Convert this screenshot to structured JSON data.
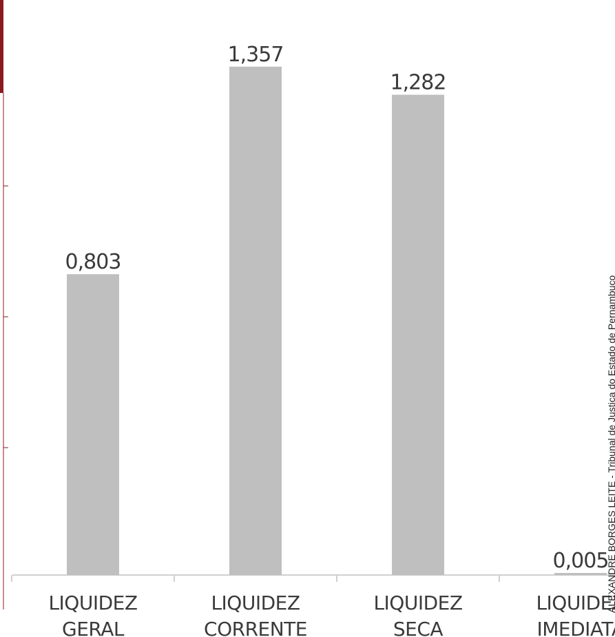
{
  "chart_data": {
    "type": "bar",
    "categories": [
      [
        "LIQUIDEZ",
        "GERAL"
      ],
      [
        "LIQUIDEZ",
        "CORRENTE"
      ],
      [
        "LIQUIDEZ",
        "SECA"
      ],
      [
        "LIQUIDEZ",
        "IMEDIATA"
      ]
    ],
    "values": [
      0.803,
      1.357,
      1.282,
      0.005
    ],
    "value_labels": [
      "0,803",
      "1,357",
      "1,282",
      "0,005"
    ],
    "ylim": [
      0,
      1.5
    ],
    "grid": false,
    "colors": {
      "bar": "#bfbfbf",
      "accent": "#8b1a1f",
      "axis": "#d0d0d0",
      "text": "#3a3a3a"
    }
  },
  "side_text": "ALEXANDRE BORGES LEITE - Tribunal de Justiça do Estado de Pernambuco"
}
